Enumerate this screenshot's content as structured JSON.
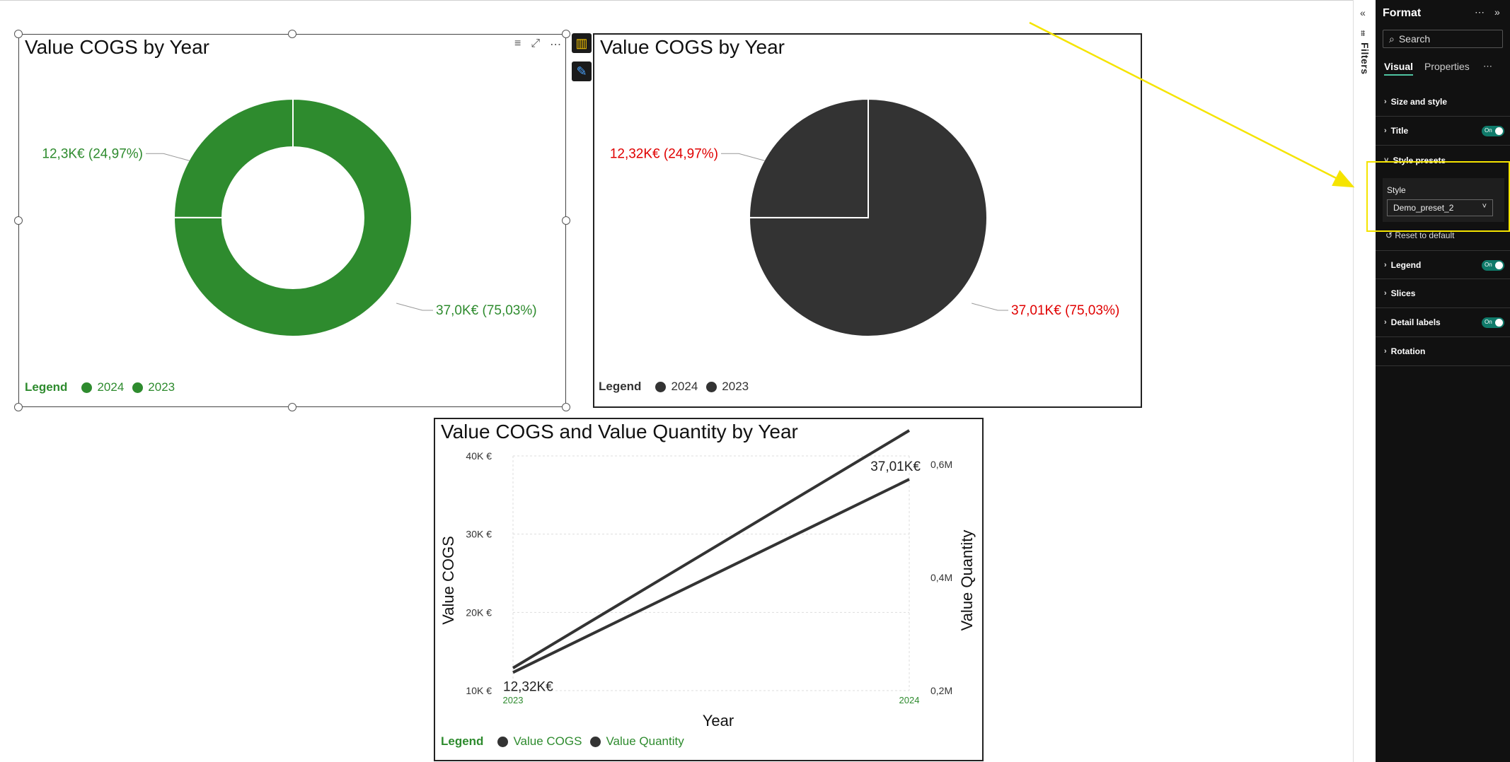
{
  "visuals": {
    "donut": {
      "title": "Value COGS by Year",
      "label_small": "12,3K€ (24,97%)",
      "label_large": "37,0K€ (75,03%)",
      "legend_title": "Legend",
      "legend_items": [
        "2024",
        "2023"
      ],
      "color": "#2e8b2e",
      "legend_color": "#2e8b2e"
    },
    "pie": {
      "title": "Value COGS by Year",
      "label_small": "12,32K€ (24,97%)",
      "label_large": "37,01K€ (75,03%)",
      "legend_title": "Legend",
      "legend_items": [
        "2024",
        "2023"
      ],
      "color": "#333333",
      "label_color": "#e00000"
    },
    "line": {
      "title": "Value COGS and Value Quantity by Year",
      "legend_title": "Legend",
      "legend_items": [
        "Value COGS",
        "Value Quantity"
      ],
      "start_label": "12,32K€",
      "end_label": "37,01K€"
    }
  },
  "chart_data": [
    {
      "type": "pie",
      "variant": "donut",
      "title": "Value COGS by Year",
      "categories": [
        "2023",
        "2024"
      ],
      "values": [
        12.32,
        37.01
      ],
      "percent": [
        24.97,
        75.03
      ],
      "unit": "K€",
      "legend": "bottom-left"
    },
    {
      "type": "pie",
      "title": "Value COGS by Year",
      "categories": [
        "2023",
        "2024"
      ],
      "values": [
        12.32,
        37.01
      ],
      "percent": [
        24.97,
        75.03
      ],
      "unit": "K€",
      "legend": "bottom-left"
    },
    {
      "type": "line",
      "title": "Value COGS and Value Quantity by Year",
      "x": [
        "2023",
        "2024"
      ],
      "xlabel": "Year",
      "ylabel": "Value COGS",
      "y2label": "Value Quantity",
      "y_ticks": [
        "10K €",
        "20K €",
        "30K €",
        "40K €"
      ],
      "y2_ticks": [
        "0,2M",
        "0,4M",
        "0,6M"
      ],
      "ylim": [
        10000,
        40000
      ],
      "y2lim": [
        0.2,
        0.6
      ],
      "series": [
        {
          "name": "Value COGS",
          "axis": "left",
          "values": [
            12320,
            37010
          ]
        },
        {
          "name": "Value Quantity",
          "axis": "right",
          "values": [
            0.24,
            0.66
          ]
        }
      ],
      "grid": true,
      "legend": "bottom-left"
    }
  ],
  "filters": {
    "label": "Filters"
  },
  "format_pane": {
    "title": "Format",
    "search_placeholder": "Search",
    "tabs": [
      "Visual",
      "Properties"
    ],
    "sections": [
      {
        "label": "Size and style",
        "toggle": false
      },
      {
        "label": "Title",
        "toggle": true
      },
      {
        "label": "Style presets",
        "toggle": false
      },
      {
        "label": "Legend",
        "toggle": true
      },
      {
        "label": "Slices",
        "toggle": false
      },
      {
        "label": "Detail labels",
        "toggle": true
      },
      {
        "label": "Rotation",
        "toggle": false
      }
    ],
    "toggle_text": "On",
    "style_label": "Style",
    "style_value": "Demo_preset_2",
    "reset_label": "Reset to default"
  },
  "colors": {
    "highlight": "#f5e400",
    "toggle_on": "#0f7a6a",
    "accent": "#4ec3a0"
  }
}
